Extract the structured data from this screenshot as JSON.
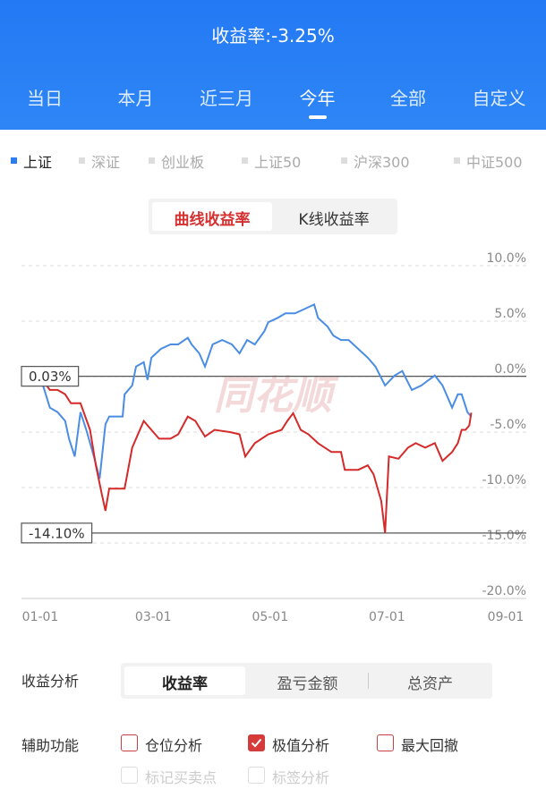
{
  "header": {
    "title": "收益率:-3.25%",
    "tabs": [
      {
        "label": "当日"
      },
      {
        "label": "本月"
      },
      {
        "label": "近三月"
      },
      {
        "label": "今年",
        "selected": true
      },
      {
        "label": "全部"
      },
      {
        "label": "自定义"
      }
    ]
  },
  "index_tabs": [
    {
      "label": "上证",
      "selected": true
    },
    {
      "label": "深证"
    },
    {
      "label": "创业板"
    },
    {
      "label": "上证50"
    },
    {
      "label": "沪深300"
    },
    {
      "label": "中证500"
    }
  ],
  "chart_toggle": [
    {
      "label": "曲线收益率",
      "selected": true
    },
    {
      "label": "K线收益率"
    }
  ],
  "watermark": "同花顺",
  "chart_data": {
    "type": "line",
    "xlim": [
      0,
      243
    ],
    "xticks": [
      {
        "value": 0,
        "label": "01-01"
      },
      {
        "value": 59,
        "label": "03-01"
      },
      {
        "value": 120,
        "label": "05-01"
      },
      {
        "value": 181,
        "label": "07-01"
      },
      {
        "value": 243,
        "label": "09-01"
      }
    ],
    "ylim": [
      -20,
      10
    ],
    "yticks": [
      {
        "value": 10,
        "label": "10.0%"
      },
      {
        "value": 5,
        "label": "5.0%"
      },
      {
        "value": 0,
        "label": "0.0%"
      },
      {
        "value": -5,
        "label": "-5.0%"
      },
      {
        "value": -10,
        "label": "-10.0%"
      },
      {
        "value": -15,
        "label": "-15.0%"
      },
      {
        "value": -20,
        "label": "-20.0%"
      }
    ],
    "grid": true,
    "annotations": [
      {
        "value": 0.03,
        "label": "0.03%"
      },
      {
        "value": -14.1,
        "label": "-14.10%"
      }
    ],
    "series": [
      {
        "color": "#4a8de3",
        "x": [
          0,
          5,
          9,
          13,
          15,
          18,
          21,
          24,
          28,
          31,
          34,
          36,
          43,
          44,
          48,
          50,
          54,
          56,
          58,
          63,
          68,
          72,
          77,
          79,
          83,
          86,
          90,
          95,
          100,
          104,
          108,
          112,
          117,
          119,
          124,
          128,
          133,
          138,
          143,
          145,
          150,
          153,
          157,
          161,
          166,
          171,
          175,
          180,
          185,
          189,
          194,
          199,
          202,
          206,
          210,
          215,
          218,
          220,
          223,
          225
        ],
        "values": [
          0,
          -2.8,
          -3.2,
          -4.0,
          -5.6,
          -7.2,
          -3.2,
          -4.8,
          -7.2,
          -9.2,
          -4.3,
          -3.6,
          -3.6,
          -1.6,
          -0.8,
          0.9,
          1.3,
          -0.3,
          1.7,
          2.5,
          2.9,
          2.9,
          3.5,
          2.9,
          2.1,
          0.9,
          2.9,
          3.3,
          2.9,
          2.1,
          3.3,
          2.9,
          4.1,
          4.9,
          5.3,
          5.7,
          5.7,
          6.1,
          6.5,
          5.3,
          4.5,
          3.7,
          3.3,
          3.3,
          2.5,
          1.7,
          0.9,
          -0.8,
          0.1,
          0.5,
          -1.2,
          -0.8,
          -0.4,
          0.1,
          -0.8,
          -2.8,
          -1.6,
          -1.6,
          -3.2,
          -3.6
        ]
      },
      {
        "color": "#d42a2a",
        "x": [
          0,
          5,
          9,
          13,
          16,
          21,
          26,
          29,
          32,
          34,
          36,
          40,
          44,
          48,
          51,
          54,
          58,
          62,
          68,
          72,
          77,
          81,
          86,
          91,
          99,
          104,
          107,
          112,
          119,
          126,
          129,
          132,
          136,
          140,
          145,
          152,
          157,
          159,
          166,
          171,
          174,
          178,
          180,
          182,
          187,
          192,
          196,
          201,
          206,
          210,
          215,
          218,
          220,
          222,
          224,
          225
        ],
        "values": [
          0,
          -1.2,
          -1.2,
          -1.6,
          -2.4,
          -2.4,
          -4.8,
          -8.0,
          -10.5,
          -12.1,
          -10.1,
          -10.1,
          -10.1,
          -6.4,
          -5.2,
          -4.0,
          -4.8,
          -5.6,
          -5.6,
          -5.2,
          -3.6,
          -4.0,
          -5.4,
          -4.8,
          -5.0,
          -5.2,
          -7.2,
          -6.0,
          -5.2,
          -4.8,
          -4.0,
          -3.3,
          -4.8,
          -5.2,
          -6.0,
          -6.8,
          -6.8,
          -8.4,
          -8.4,
          -8.0,
          -8.8,
          -11.2,
          -14.1,
          -7.2,
          -7.4,
          -6.4,
          -6.0,
          -6.4,
          -6.0,
          -7.6,
          -6.8,
          -6.0,
          -4.8,
          -4.8,
          -4.4,
          -3.25
        ]
      }
    ]
  },
  "analysis": {
    "label": "收益分析",
    "options": [
      {
        "label": "收益率",
        "selected": true
      },
      {
        "label": "盈亏金额"
      },
      {
        "label": "总资产"
      }
    ]
  },
  "tools": {
    "label": "辅助功能",
    "options": [
      {
        "label": "仓位分析"
      },
      {
        "label": "极值分析",
        "checked": true
      },
      {
        "label": "最大回撤"
      },
      {
        "label": "标记买卖点",
        "disabled": true
      },
      {
        "label": "标签分析",
        "disabled": true
      }
    ]
  }
}
